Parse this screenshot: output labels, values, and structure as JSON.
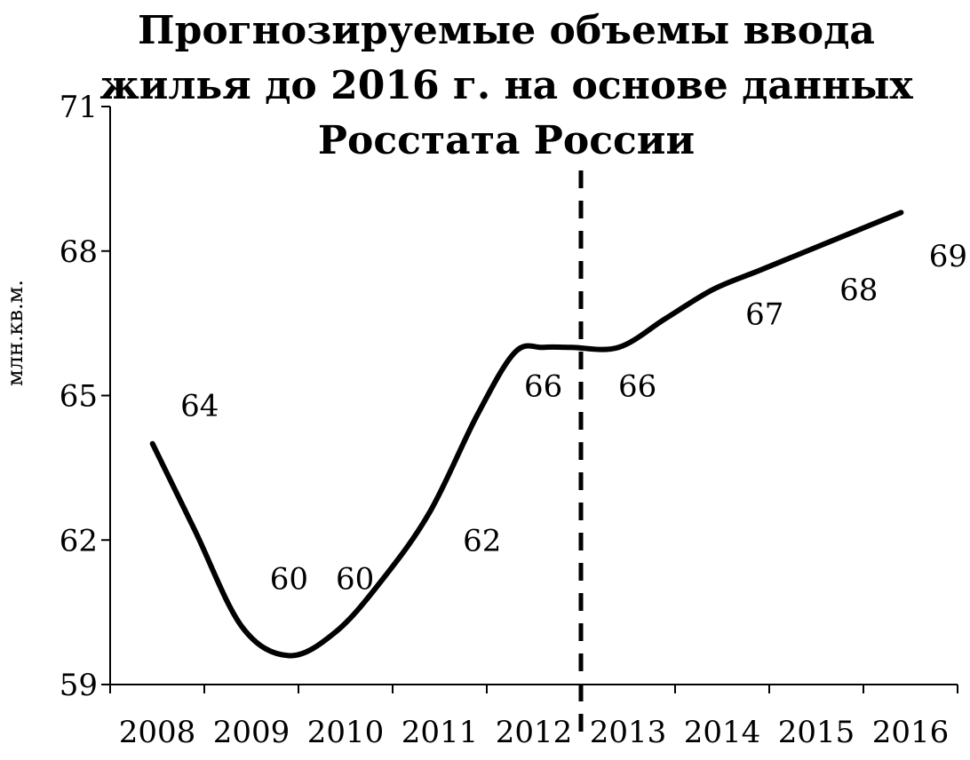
{
  "chart_data": {
    "type": "line",
    "title_lines": [
      "Прогнозируемые объемы ввода",
      "жилья до 2016 г. на основе данных",
      "Росстата России"
    ],
    "ylabel": "млн.кв.м.",
    "xlabel": "",
    "ylim": [
      59,
      71
    ],
    "yticks": [
      59,
      62,
      65,
      68,
      71
    ],
    "categories": [
      "2008",
      "2009",
      "2010",
      "2011",
      "2012",
      "2013",
      "2014",
      "2015",
      "2016"
    ],
    "series": [
      {
        "color": "#000000",
        "curve_points": [
          {
            "x": 2008.45,
            "y": 64.0
          },
          {
            "x": 2008.9,
            "y": 62.2
          },
          {
            "x": 2009.4,
            "y": 60.2
          },
          {
            "x": 2009.9,
            "y": 59.6
          },
          {
            "x": 2010.4,
            "y": 60.1
          },
          {
            "x": 2010.9,
            "y": 61.2
          },
          {
            "x": 2011.4,
            "y": 62.6
          },
          {
            "x": 2011.9,
            "y": 64.6
          },
          {
            "x": 2012.3,
            "y": 65.9
          },
          {
            "x": 2012.6,
            "y": 66.0
          },
          {
            "x": 2012.9,
            "y": 66.0
          },
          {
            "x": 2013.4,
            "y": 66.0
          },
          {
            "x": 2013.9,
            "y": 66.6
          },
          {
            "x": 2014.4,
            "y": 67.2
          },
          {
            "x": 2014.9,
            "y": 67.6
          },
          {
            "x": 2015.4,
            "y": 68.0
          },
          {
            "x": 2015.9,
            "y": 68.4
          },
          {
            "x": 2016.4,
            "y": 68.8
          }
        ],
        "labels": [
          {
            "text": "64",
            "x": 2008.95,
            "y": 64.8
          },
          {
            "text": "60",
            "x": 2009.9,
            "y": 61.2
          },
          {
            "text": "60",
            "x": 2010.6,
            "y": 61.2
          },
          {
            "text": "62",
            "x": 2011.95,
            "y": 62.0
          },
          {
            "text": "66",
            "x": 2012.6,
            "y": 65.2
          },
          {
            "text": "66",
            "x": 2013.6,
            "y": 65.2
          },
          {
            "text": "67",
            "x": 2014.95,
            "y": 66.7
          },
          {
            "text": "68",
            "x": 2015.95,
            "y": 67.2
          },
          {
            "text": "69",
            "x": 2016.9,
            "y": 67.9
          }
        ]
      }
    ],
    "forecast_divider_x": 2013.0,
    "grid": false,
    "legend": "none"
  }
}
